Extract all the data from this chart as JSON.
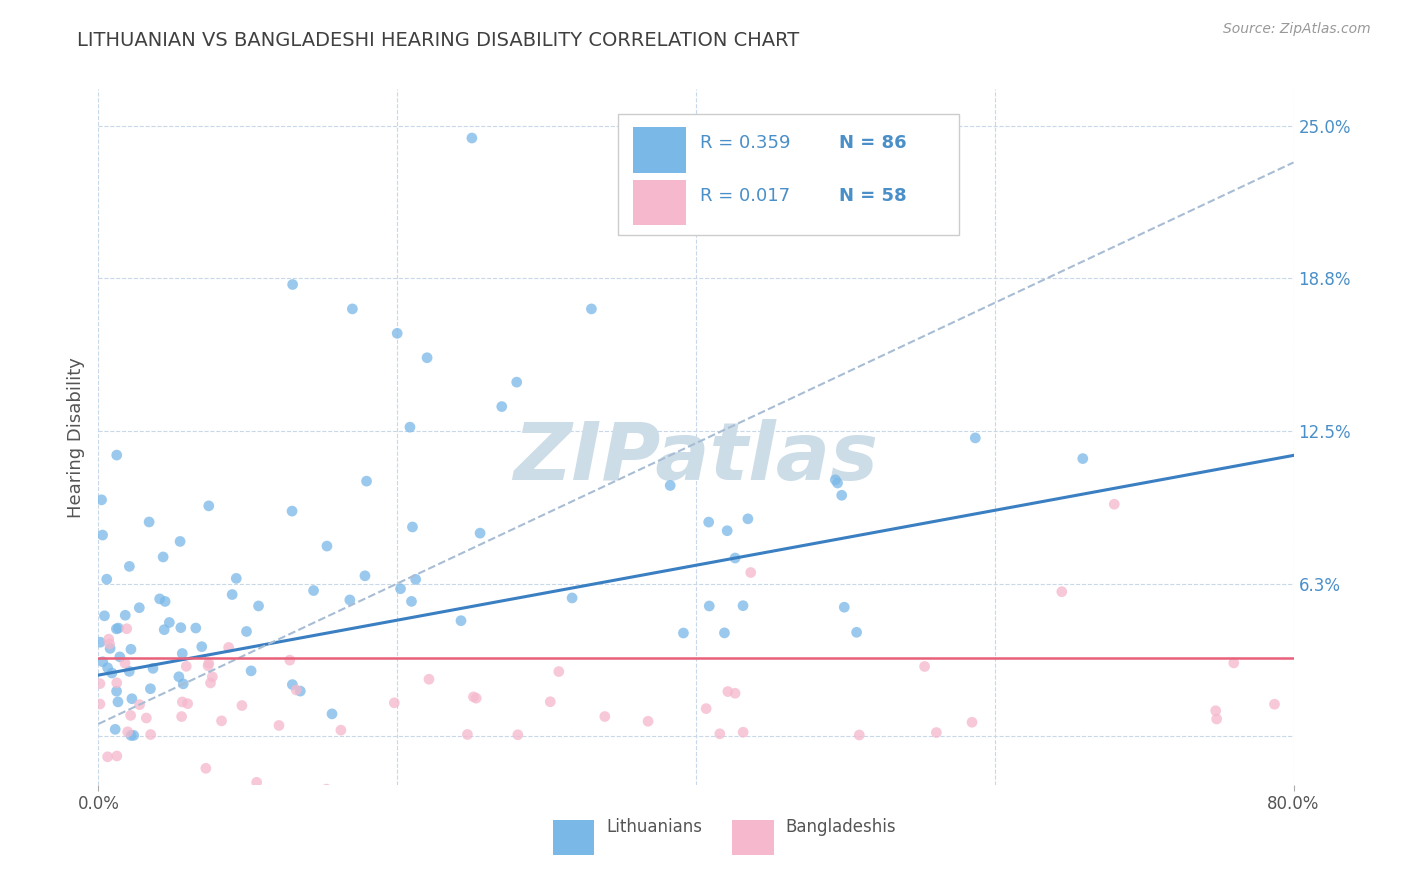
{
  "title": "LITHUANIAN VS BANGLADESHI HEARING DISABILITY CORRELATION CHART",
  "source": "Source: ZipAtlas.com",
  "ylabel": "Hearing Disability",
  "xlim": [
    0.0,
    0.8
  ],
  "ylim": [
    -0.02,
    0.265
  ],
  "plot_ylim": [
    0.0,
    0.25
  ],
  "yticks": [
    0.0,
    0.0625,
    0.125,
    0.1875,
    0.25
  ],
  "ytick_labels": [
    "",
    "6.3%",
    "12.5%",
    "18.8%",
    "25.0%"
  ],
  "legend_r1": "R = 0.359",
  "legend_n1": "N = 86",
  "legend_r2": "R = 0.017",
  "legend_n2": "N = 58",
  "blue_color": "#7ab8e8",
  "pink_color": "#f5b8cc",
  "trend_blue": "#3a7fc1",
  "trend_gray": "#a8bdd4",
  "trend_pink": "#e8607a",
  "background": "#ffffff",
  "grid_color": "#c8d8e8",
  "watermark": "ZIPatlas",
  "watermark_color": "#ccdde8",
  "title_color": "#404040",
  "label_color": "#4a8fc8",
  "R1": 0.359,
  "N1": 86,
  "R2": 0.017,
  "N2": 58,
  "seed": 42,
  "blue_trend_y_start": 0.025,
  "blue_trend_y_end": 0.115,
  "gray_trend_y_start": 0.005,
  "gray_trend_y_end": 0.235,
  "pink_trend_y": 0.032
}
